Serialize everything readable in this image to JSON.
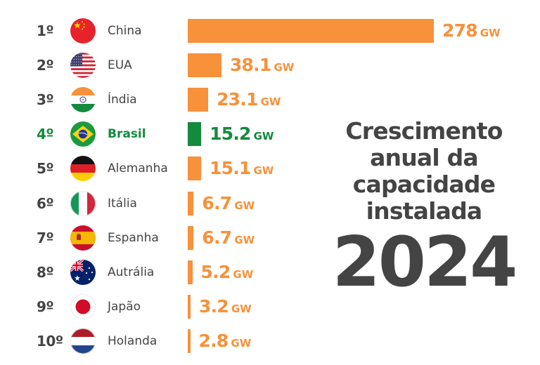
{
  "chart_data": {
    "type": "bar",
    "orientation": "horizontal",
    "title_lines": [
      "Crescimento",
      "anual da",
      "capacidade",
      "instalada"
    ],
    "year": "2024",
    "unit": "GW",
    "xlabel": "",
    "ylabel": "",
    "grid": false,
    "legend": "none",
    "categories": [
      "China",
      "EUA",
      "Índia",
      "Brasil",
      "Alemanha",
      "Itália",
      "Espanha",
      "Autrália",
      "Japão",
      "Holanda"
    ],
    "ranks": [
      "1º",
      "2º",
      "3º",
      "4º",
      "5º",
      "6º",
      "7º",
      "8º",
      "9º",
      "10º"
    ],
    "values": [
      278,
      38.1,
      23.1,
      15.2,
      15.1,
      6.7,
      6.7,
      5.2,
      3.2,
      2.8
    ],
    "value_labels": [
      "278",
      "38.1",
      "23.1",
      "15.2",
      "15.1",
      "6.7",
      "6.7",
      "5.2",
      "3.2",
      "2.8"
    ],
    "flags": [
      "china-flag-icon",
      "usa-flag-icon",
      "india-flag-icon",
      "brazil-flag-icon",
      "germany-flag-icon",
      "italy-flag-icon",
      "spain-flag-icon",
      "australia-flag-icon",
      "japan-flag-icon",
      "netherlands-flag-icon"
    ],
    "highlight_index": 3,
    "xlim": [
      0,
      278
    ]
  },
  "colors": {
    "bar": "#f7913a",
    "highlight": "#138a3e",
    "text": "#444444"
  }
}
